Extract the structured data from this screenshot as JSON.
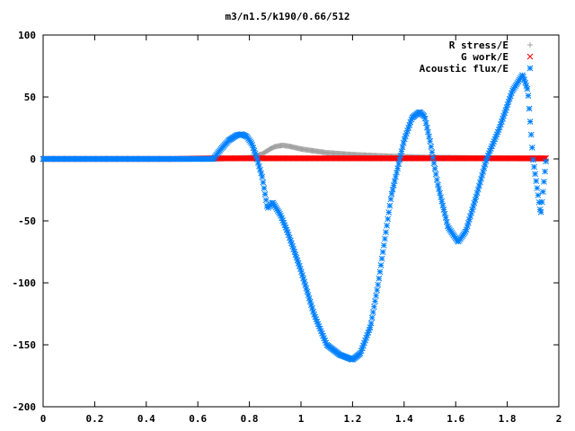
{
  "chart_data": {
    "type": "scatter",
    "title": "m3/n1.5/k190/0.66/512",
    "xlabel": "",
    "ylabel": "",
    "xlim": [
      0,
      2
    ],
    "ylim": [
      -200,
      100
    ],
    "x_ticks": [
      "0",
      "0.2",
      "0.4",
      "0.6",
      "0.8",
      "1",
      "1.2",
      "1.4",
      "1.6",
      "1.8",
      "2"
    ],
    "y_ticks": [
      "100",
      "50",
      "0",
      "-50",
      "-100",
      "-150",
      "-200"
    ],
    "legend_position": "top-right",
    "grid": false,
    "series": [
      {
        "name": "R stress/E",
        "color": "#a0a0a0",
        "marker": "plus",
        "x": [
          0,
          0.2,
          0.4,
          0.6,
          0.66,
          0.7,
          0.75,
          0.8,
          0.85,
          0.88,
          0.9,
          0.93,
          0.96,
          1.0,
          1.05,
          1.1,
          1.2,
          1.3,
          1.4,
          1.5,
          1.6,
          1.7,
          1.8,
          1.9,
          1.95
        ],
        "y": [
          0,
          0,
          0,
          0,
          0,
          0.3,
          0.5,
          1,
          4,
          8,
          10,
          11,
          10,
          8,
          6.5,
          5,
          3.5,
          2.5,
          1.8,
          1.2,
          1,
          0.6,
          0.4,
          0.2,
          0
        ]
      },
      {
        "name": "G work/E",
        "color": "#ff0000",
        "marker": "cross",
        "x": [
          0,
          0.5,
          0.66,
          1.0,
          1.5,
          1.95
        ],
        "y": [
          0,
          0,
          0.5,
          0.5,
          0.5,
          0.5
        ]
      },
      {
        "name": "Acoustic flux/E",
        "color": "#0080ff",
        "marker": "star",
        "x": [
          0,
          0.3,
          0.6,
          0.66,
          0.69,
          0.72,
          0.75,
          0.77,
          0.79,
          0.81,
          0.83,
          0.85,
          0.87,
          0.89,
          0.92,
          0.95,
          1.0,
          1.05,
          1.1,
          1.15,
          1.2,
          1.23,
          1.27,
          1.3,
          1.35,
          1.4,
          1.43,
          1.46,
          1.48,
          1.5,
          1.53,
          1.57,
          1.61,
          1.64,
          1.68,
          1.72,
          1.77,
          1.82,
          1.86,
          1.88,
          1.9,
          1.92,
          1.93,
          1.95
        ],
        "y": [
          0,
          0,
          0,
          0,
          8,
          15,
          19,
          20,
          18,
          12,
          0,
          -15,
          -40,
          -35,
          -45,
          -60,
          -90,
          -125,
          -150,
          -158,
          -162,
          -157,
          -135,
          -100,
          -30,
          15,
          33,
          38,
          34,
          15,
          -20,
          -55,
          -67,
          -58,
          -30,
          0,
          25,
          55,
          68,
          55,
          0,
          -30,
          -45,
          -2
        ]
      }
    ]
  }
}
